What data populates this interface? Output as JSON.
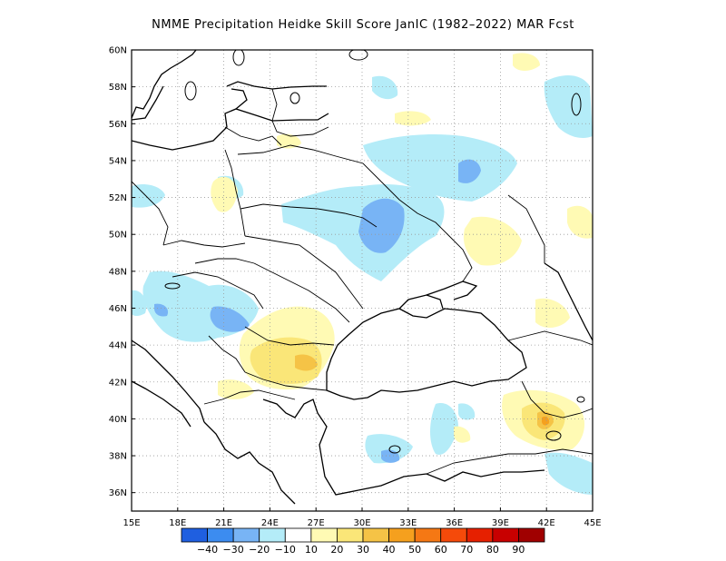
{
  "title": "NMME  Precipitation Heidke Skill Score JanIC (1982–2022) MAR Fcst",
  "lat_labels": [
    "60N",
    "58N",
    "56N",
    "54N",
    "52N",
    "50N",
    "48N",
    "46N",
    "44N",
    "42N",
    "40N",
    "38N",
    "36N"
  ],
  "lon_labels": [
    "15E",
    "18E",
    "21E",
    "24E",
    "27E",
    "30E",
    "33E",
    "36E",
    "39E",
    "42E",
    "45E"
  ],
  "colorbar": {
    "colors": [
      "#1f5fe0",
      "#3c8cf0",
      "#78b4f5",
      "#b4ecf8",
      "#ffffff",
      "#fffab4",
      "#fae678",
      "#f5c346",
      "#f5a01e",
      "#f57814",
      "#f54a0a",
      "#e62000",
      "#c80000",
      "#a00000"
    ],
    "labels": [
      "−40",
      "−30",
      "−20",
      "−10",
      "10",
      "20",
      "30",
      "40",
      "50",
      "60",
      "70",
      "80",
      "90"
    ]
  },
  "chart_data": {
    "type": "heatmap",
    "title": "NMME  Precipitation Heidke Skill Score JanIC (1982–2022) MAR Fcst",
    "lon_range": [
      15,
      45
    ],
    "lat_range": [
      35,
      60
    ],
    "grid": true,
    "regions": [
      {
        "name": "Central Ukraine / S Russia",
        "value": -20
      },
      {
        "name": "Belarus / Russia border",
        "value": -20
      },
      {
        "name": "Hungary / Serbia",
        "value": -20
      },
      {
        "name": "Bulgaria",
        "value": 20
      },
      {
        "name": "Eastern Turkey",
        "value": 30
      },
      {
        "name": "Central Turkey",
        "value": -20
      }
    ]
  }
}
